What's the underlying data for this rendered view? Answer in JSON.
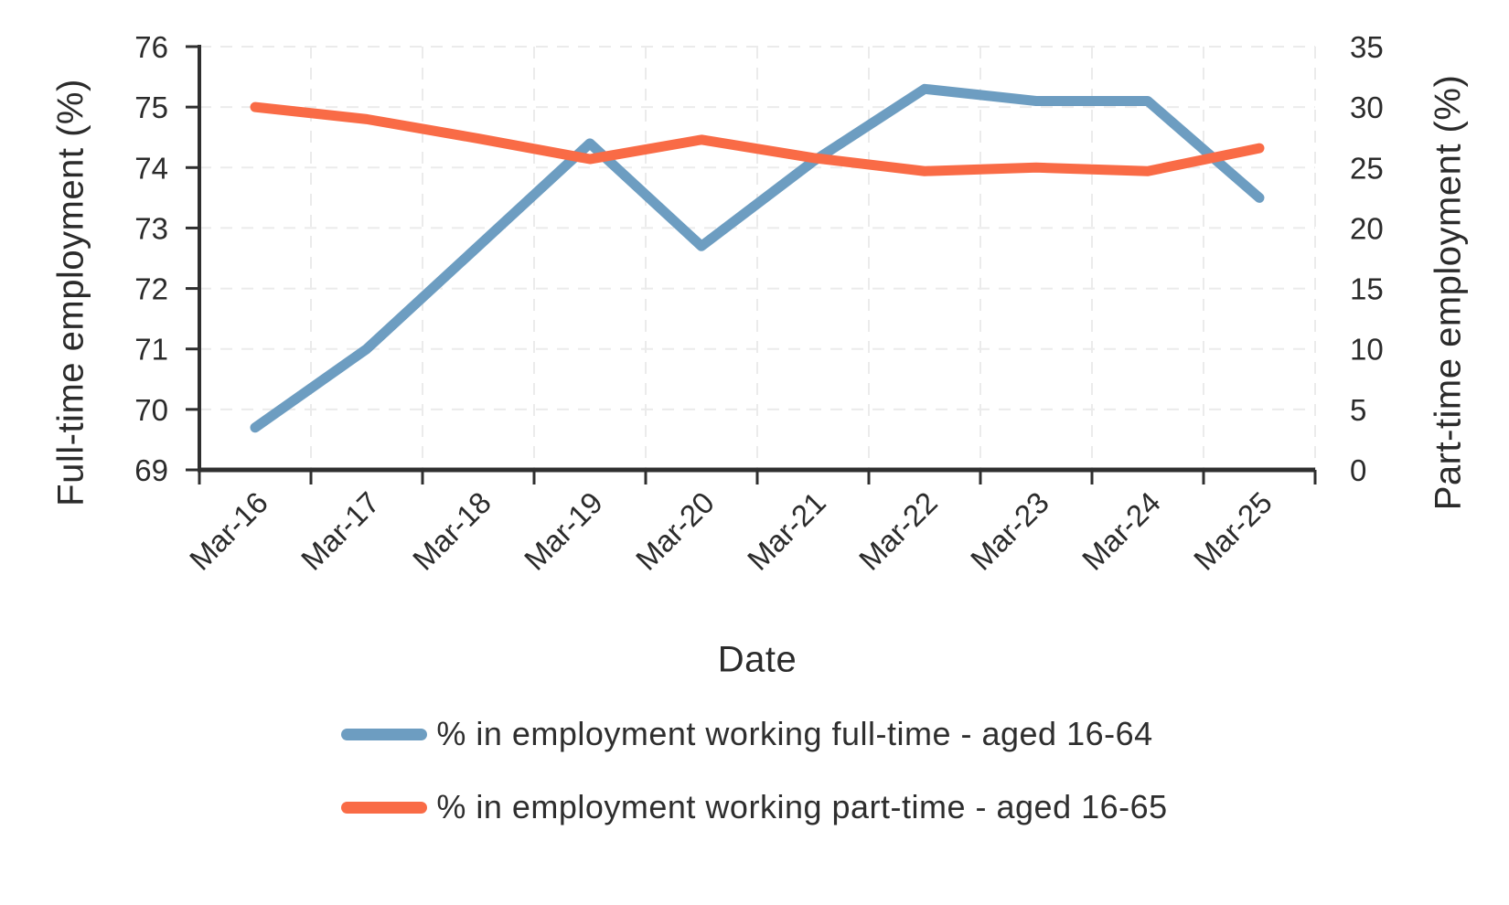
{
  "page": {
    "background": "#ffffff"
  },
  "chart_data": {
    "type": "line",
    "title": "",
    "xlabel": "Date",
    "categories": [
      "Mar-16",
      "Mar-17",
      "Mar-18",
      "Mar-19",
      "Mar-20",
      "Mar-21",
      "Mar-22",
      "Mar-23",
      "Mar-24",
      "Mar-25"
    ],
    "series": [
      {
        "name": "% in employment working full-time - aged 16-64",
        "axis": "left",
        "color": "#6d9dc1",
        "values": [
          69.7,
          71.0,
          72.7,
          74.4,
          72.7,
          74.1,
          75.3,
          75.1,
          75.1,
          73.5
        ]
      },
      {
        "name": "% in employment working part-time - aged 16-65",
        "axis": "right",
        "color": "#f96b46",
        "values": [
          30.0,
          29.0,
          27.4,
          25.7,
          27.3,
          25.8,
          24.7,
          25.0,
          24.7,
          26.6
        ]
      }
    ],
    "left_axis": {
      "label": "Full-time employment (%)",
      "min": 69,
      "max": 76,
      "step": 1,
      "tick_labels": [
        "69",
        "70",
        "71",
        "72",
        "73",
        "74",
        "75",
        "76"
      ]
    },
    "right_axis": {
      "label": "Part-time employment (%)",
      "min": 0,
      "max": 35,
      "step": 5,
      "tick_labels": [
        "0",
        "5",
        "10",
        "15",
        "20",
        "25",
        "30",
        "35"
      ]
    },
    "grid": true,
    "legend_position": "bottom",
    "styles": {
      "grid_color": "#ebebeb",
      "axis_color": "#2f2f2f",
      "text_color": "#2b2b2b",
      "tick_font_size": 33,
      "line_width": 11
    }
  }
}
